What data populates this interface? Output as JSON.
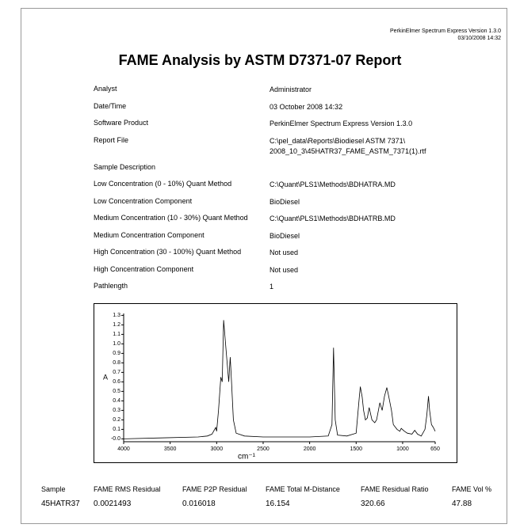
{
  "header": {
    "product": "PerkinElmer Spectrum Express Version 1.3.0",
    "timestamp": "03/10/2008 14:32"
  },
  "title": "FAME Analysis by ASTM D7371-07 Report",
  "fields": [
    {
      "label": "Analyst",
      "value": "Administrator"
    },
    {
      "label": "Date/Time",
      "value": "03 October 2008 14:32"
    },
    {
      "label": "Software Product",
      "value": "PerkinElmer Spectrum Express Version 1.3.0"
    },
    {
      "label": "Report File",
      "value": [
        "C:\\pel_data\\Reports\\Biodiesel ASTM 7371\\",
        "2008_10_3\\45HATR37_FAME_ASTM_7371(1).rtf"
      ]
    },
    {
      "label": "Sample Description"
    },
    {
      "label": "Low Concentration (0 - 10%) Quant Method",
      "value": "C:\\Quant\\PLS1\\Methods\\BDHATRA.MD"
    },
    {
      "label": "Low Concentration Component",
      "value": "BioDiesel"
    },
    {
      "label": "Medium Concentration (10 - 30%) Quant Method",
      "value": "C:\\Quant\\PLS1\\Methods\\BDHATRB.MD"
    },
    {
      "label": "Medium Concentration Component",
      "value": "BioDiesel"
    },
    {
      "label": "High Concentration (30 - 100%) Quant Method",
      "value": "Not used"
    },
    {
      "label": "High Concentration Component",
      "value": "Not used"
    },
    {
      "label": "Pathlength",
      "value": "1"
    }
  ],
  "chart_data": {
    "type": "line",
    "ylabel": "A",
    "xlabel": "cm⁻¹",
    "color": "#000000",
    "x": [
      4000,
      3600,
      3200,
      3100,
      3050,
      3010,
      3000,
      2980,
      2955,
      2940,
      2925,
      2900,
      2870,
      2854,
      2840,
      2820,
      2790,
      2700,
      2500,
      2000,
      1800,
      1760,
      1743,
      1725,
      1700,
      1600,
      1500,
      1465,
      1455,
      1435,
      1420,
      1400,
      1380,
      1360,
      1330,
      1300,
      1280,
      1245,
      1220,
      1195,
      1170,
      1150,
      1120,
      1100,
      1060,
      1030,
      1015,
      980,
      950,
      900,
      870,
      840,
      800,
      760,
      740,
      722,
      710,
      690,
      670,
      650
    ],
    "values": [
      0.0,
      0.01,
      0.02,
      0.03,
      0.05,
      0.12,
      0.08,
      0.3,
      0.65,
      0.6,
      1.25,
      0.95,
      0.6,
      0.86,
      0.6,
      0.2,
      0.06,
      0.03,
      0.02,
      0.02,
      0.03,
      0.15,
      0.96,
      0.2,
      0.04,
      0.03,
      0.06,
      0.45,
      0.55,
      0.44,
      0.3,
      0.2,
      0.22,
      0.33,
      0.2,
      0.17,
      0.2,
      0.38,
      0.3,
      0.45,
      0.54,
      0.45,
      0.3,
      0.15,
      0.1,
      0.08,
      0.11,
      0.08,
      0.06,
      0.05,
      0.09,
      0.05,
      0.03,
      0.1,
      0.25,
      0.45,
      0.3,
      0.15,
      0.12,
      0.08
    ],
    "xlim": [
      4000,
      650
    ],
    "xticks": [
      4000,
      3500,
      3000,
      2500,
      2000,
      1500,
      1000,
      650
    ],
    "ylim": [
      -0.03,
      1.32
    ],
    "yticks": [
      {
        "value": 0,
        "label": "-0.0"
      },
      0.1,
      0.2,
      0.3,
      0.4,
      0.5,
      0.6,
      0.7,
      0.8,
      0.9,
      {
        "value": 1,
        "label": "1.0"
      },
      1.1,
      1.2,
      1.3
    ]
  },
  "results": {
    "headers": [
      "Sample",
      "FAME RMS Residual",
      "FAME P2P Residual",
      "FAME Total M-Distance",
      "FAME Residual Ratio",
      "FAME Vol %"
    ],
    "values": [
      "45HATR37",
      "0.0021493",
      "0.016018",
      "16.154",
      "320.66",
      "47.88"
    ]
  }
}
